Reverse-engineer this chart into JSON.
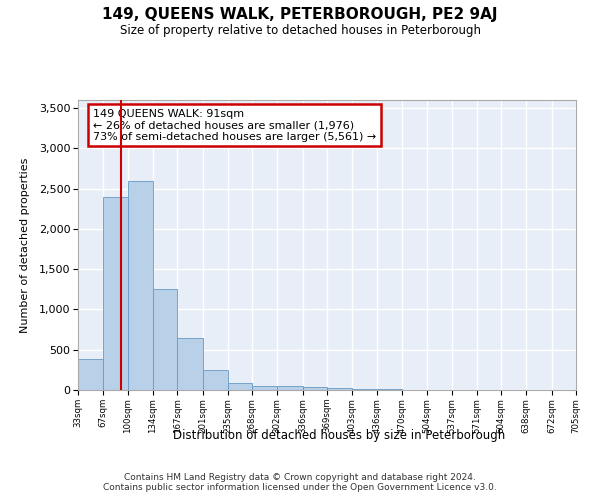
{
  "title": "149, QUEENS WALK, PETERBOROUGH, PE2 9AJ",
  "subtitle": "Size of property relative to detached houses in Peterborough",
  "xlabel": "Distribution of detached houses by size in Peterborough",
  "ylabel": "Number of detached properties",
  "footer_line1": "Contains HM Land Registry data © Crown copyright and database right 2024.",
  "footer_line2": "Contains public sector information licensed under the Open Government Licence v3.0.",
  "bar_edges": [
    33,
    67,
    100,
    134,
    167,
    201,
    235,
    268,
    302,
    336,
    369,
    403,
    436,
    470,
    504,
    537,
    571,
    604,
    638,
    672,
    705
  ],
  "bar_heights": [
    380,
    2390,
    2600,
    1250,
    640,
    250,
    90,
    55,
    55,
    40,
    20,
    15,
    8,
    5,
    3,
    2,
    1,
    1,
    0,
    0
  ],
  "bar_color": "#b8d0e8",
  "bar_edge_color": "#6899c4",
  "bg_color": "#e8eef8",
  "grid_color": "#ffffff",
  "vline_x": 91,
  "vline_color": "#cc0000",
  "annotation_text": "149 QUEENS WALK: 91sqm\n← 26% of detached houses are smaller (1,976)\n73% of semi-detached houses are larger (5,561) →",
  "annotation_box_color": "#cc0000",
  "annotation_fill": "#ffffff",
  "ylim": [
    0,
    3600
  ],
  "yticks": [
    0,
    500,
    1000,
    1500,
    2000,
    2500,
    3000,
    3500
  ],
  "tick_labels": [
    "33sqm",
    "67sqm",
    "100sqm",
    "134sqm",
    "167sqm",
    "201sqm",
    "235sqm",
    "268sqm",
    "302sqm",
    "336sqm",
    "369sqm",
    "403sqm",
    "436sqm",
    "470sqm",
    "504sqm",
    "537sqm",
    "571sqm",
    "604sqm",
    "638sqm",
    "672sqm",
    "705sqm"
  ]
}
